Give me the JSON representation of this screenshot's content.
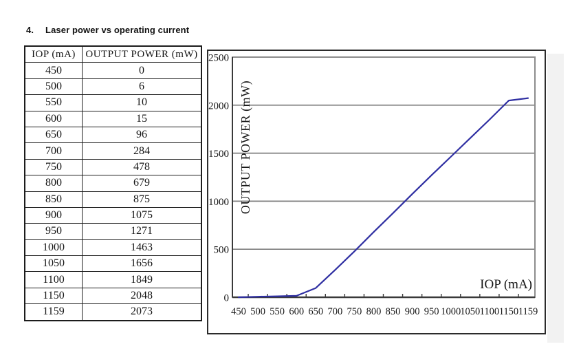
{
  "page": {
    "heading_number": "4.",
    "heading_title": "Laser power vs operating current"
  },
  "table": {
    "headers": [
      "IOP (mA)",
      "OUTPUT POWER (mW)"
    ],
    "rows": [
      [
        "450",
        "0"
      ],
      [
        "500",
        "6"
      ],
      [
        "550",
        "10"
      ],
      [
        "600",
        "15"
      ],
      [
        "650",
        "96"
      ],
      [
        "700",
        "284"
      ],
      [
        "750",
        "478"
      ],
      [
        "800",
        "679"
      ],
      [
        "850",
        "875"
      ],
      [
        "900",
        "1075"
      ],
      [
        "950",
        "1271"
      ],
      [
        "1000",
        "1463"
      ],
      [
        "1050",
        "1656"
      ],
      [
        "1100",
        "1849"
      ],
      [
        "1150",
        "2048"
      ],
      [
        "1159",
        "2073"
      ]
    ]
  },
  "chart_data": {
    "type": "line",
    "title": "",
    "xlabel": "IOP (mA)",
    "ylabel": "OUTPUT POWER (mW)",
    "categories": [
      450,
      500,
      550,
      600,
      650,
      700,
      750,
      800,
      850,
      900,
      950,
      1000,
      1050,
      1100,
      1150,
      1159
    ],
    "series": [
      {
        "name": "OUTPUT POWER (mW)",
        "values": [
          0,
          6,
          10,
          15,
          96,
          284,
          478,
          679,
          875,
          1075,
          1271,
          1463,
          1656,
          1849,
          2048,
          2073
        ]
      }
    ],
    "ylim": [
      0,
      2500
    ],
    "ytick_step": 500,
    "yticks": [
      0,
      500,
      1000,
      1500,
      2000,
      2500
    ],
    "grid": true,
    "legend": "none",
    "colors": {
      "line": "#2f2fa2",
      "gridline": "#7f7f7f",
      "plot_border": "#8c8c8c",
      "axis": "#3a3a3a",
      "text": "#161616"
    }
  }
}
